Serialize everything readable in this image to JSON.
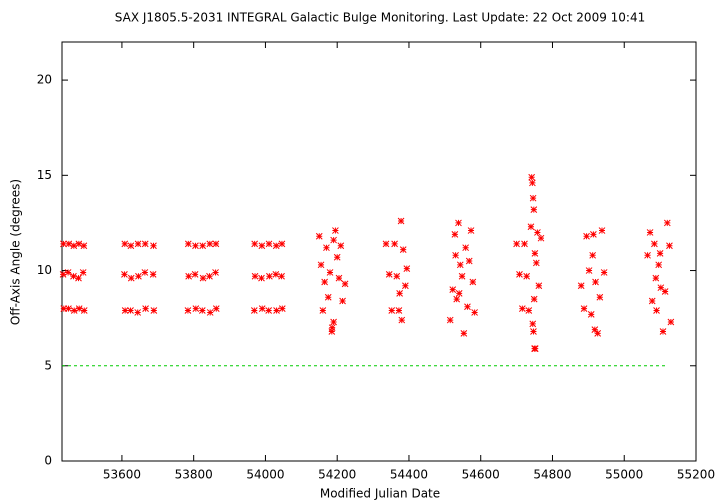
{
  "chart_data": {
    "type": "scatter",
    "title": "SAX J1805.5-2031   INTEGRAL Galactic Bulge Monitoring.  Last Update: 22 Oct 2009 10:41",
    "xlabel": "Modified Julian Date",
    "ylabel": "Off-Axis Angle (degrees)",
    "xlim": [
      53433,
      55200
    ],
    "ylim": [
      0,
      22
    ],
    "xticks": [
      53600,
      53800,
      54000,
      54200,
      54400,
      54600,
      54800,
      55000,
      55200
    ],
    "yticks": [
      0,
      5,
      10,
      15,
      20
    ],
    "hline": 5,
    "hline_color": "#00cc00",
    "series": [
      {
        "color": "#ff0000",
        "x": [
          53437,
          53452,
          53466,
          53480,
          53494,
          53436,
          53450,
          53465,
          53479,
          53492,
          53438,
          53451,
          53467,
          53481,
          53495,
          53608,
          53625,
          53645,
          53665,
          53688,
          53607,
          53626,
          53646,
          53664,
          53687,
          53609,
          53624,
          53644,
          53666,
          53689,
          53785,
          53805,
          53825,
          53845,
          53862,
          53786,
          53804,
          53826,
          53844,
          53861,
          53784,
          53806,
          53824,
          53846,
          53863,
          53970,
          53990,
          54010,
          54030,
          54046,
          53971,
          53989,
          54011,
          54029,
          54045,
          53969,
          53991,
          54009,
          54031,
          54047,
          54150,
          54155,
          54160,
          54165,
          54170,
          54175,
          54180,
          54185,
          54190,
          54195,
          54200,
          54205,
          54210,
          54215,
          54222,
          54186,
          54190,
          54336,
          54345,
          54352,
          54360,
          54366,
          54372,
          54378,
          54384,
          54390,
          54394,
          54374,
          54380,
          54515,
          54522,
          54528,
          54533,
          54538,
          54543,
          54548,
          54553,
          54558,
          54563,
          54568,
          54573,
          54578,
          54583,
          54540,
          54530,
          54700,
          54708,
          54716,
          54722,
          54728,
          54734,
          54740,
          54742,
          54744,
          54746,
          54748,
          54750,
          54752,
          54755,
          54758,
          54762,
          54768,
          54745,
          54749,
          54747,
          54751,
          54880,
          54888,
          54895,
          54902,
          54908,
          54914,
          54920,
          54926,
          54932,
          54938,
          54944,
          54912,
          54918,
          55065,
          55072,
          55078,
          55084,
          55090,
          55096,
          55102,
          55108,
          55114,
          55120,
          55126,
          55130,
          55088,
          55100
        ],
        "y": [
          11.4,
          11.4,
          11.3,
          11.4,
          11.3,
          9.8,
          9.9,
          9.7,
          9.6,
          9.9,
          8.0,
          8.0,
          7.9,
          8.0,
          7.9,
          11.4,
          11.3,
          11.4,
          11.4,
          11.3,
          9.8,
          9.6,
          9.7,
          9.9,
          9.8,
          7.9,
          7.9,
          7.8,
          8.0,
          7.9,
          11.4,
          11.3,
          11.3,
          11.4,
          11.4,
          9.7,
          9.8,
          9.6,
          9.7,
          9.9,
          7.9,
          8.0,
          7.9,
          7.8,
          8.0,
          11.4,
          11.3,
          11.4,
          11.3,
          11.4,
          9.7,
          9.6,
          9.7,
          9.8,
          9.7,
          7.9,
          8.0,
          7.9,
          7.9,
          8.0,
          11.8,
          10.3,
          7.9,
          9.4,
          11.2,
          8.6,
          9.9,
          6.8,
          7.3,
          12.1,
          10.7,
          9.6,
          11.3,
          8.4,
          9.3,
          7.0,
          11.6,
          11.4,
          9.8,
          7.9,
          11.4,
          9.7,
          7.9,
          12.6,
          11.1,
          9.2,
          10.1,
          8.8,
          7.4,
          7.4,
          9.0,
          11.9,
          8.5,
          12.5,
          10.3,
          9.7,
          6.7,
          11.2,
          8.1,
          10.5,
          12.1,
          9.4,
          7.8,
          8.8,
          10.8,
          11.4,
          9.8,
          8.0,
          11.4,
          9.7,
          7.9,
          12.3,
          14.9,
          14.6,
          13.8,
          13.2,
          5.9,
          5.9,
          10.4,
          12.0,
          9.2,
          11.7,
          7.2,
          8.5,
          6.8,
          10.9,
          9.2,
          8.0,
          11.8,
          10.0,
          7.7,
          11.9,
          9.4,
          6.7,
          8.6,
          12.1,
          9.9,
          10.8,
          6.9,
          10.8,
          12.0,
          8.4,
          11.4,
          7.9,
          10.3,
          9.1,
          6.8,
          8.9,
          12.5,
          11.3,
          7.3,
          9.6,
          10.9
        ]
      }
    ]
  }
}
